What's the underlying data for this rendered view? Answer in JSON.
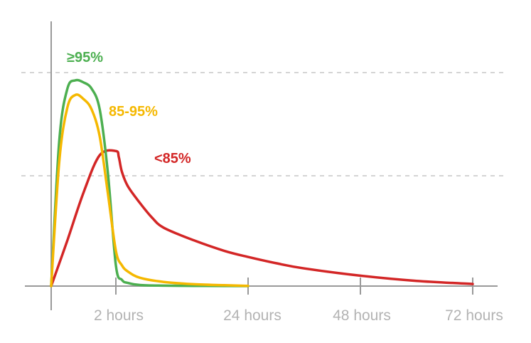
{
  "chart_data": {
    "type": "line",
    "title": "",
    "xlabel": "",
    "ylabel": "",
    "x_ticks": [
      "2 hours",
      "24 hours",
      "48 hours",
      "72 hours"
    ],
    "grid": "dashed horizontal lines at two levels",
    "colors": {
      "axis": "#999999",
      "tick_label": "#b3b3b3",
      "grid": "#aaaaaa"
    },
    "series": [
      {
        "name": "≥95%",
        "color": "#4caf50",
        "x": [
          0,
          0.25,
          0.5,
          0.75,
          1.0,
          1.25,
          1.5,
          1.75,
          2.0,
          3,
          4,
          6,
          10,
          15,
          20,
          24
        ],
        "y": [
          0,
          70,
          95,
          99,
          98,
          95,
          85,
          55,
          10,
          3,
          1.5,
          0.5,
          0.2,
          0.1,
          0.05,
          0
        ]
      },
      {
        "name": "85-95%",
        "color": "#f5b800",
        "x": [
          0,
          0.25,
          0.5,
          0.75,
          1.0,
          1.25,
          1.5,
          1.75,
          2.0,
          3,
          4,
          6,
          10,
          15,
          20,
          24
        ],
        "y": [
          0,
          60,
          86,
          92,
          90,
          85,
          72,
          45,
          17,
          10,
          7,
          4,
          2,
          0.9,
          0.4,
          0.1
        ]
      },
      {
        "name": "<85%",
        "color": "#d32626",
        "x": [
          0,
          0.5,
          1.0,
          1.5,
          2.0,
          2.5,
          3,
          4,
          6,
          8,
          10,
          15,
          20,
          24,
          30,
          36,
          48,
          60,
          72
        ],
        "y": [
          0,
          22,
          45,
          63,
          65,
          62,
          55,
          48,
          40,
          33,
          28,
          22,
          17,
          14,
          11,
          8.5,
          5,
          2.5,
          1
        ]
      }
    ]
  }
}
